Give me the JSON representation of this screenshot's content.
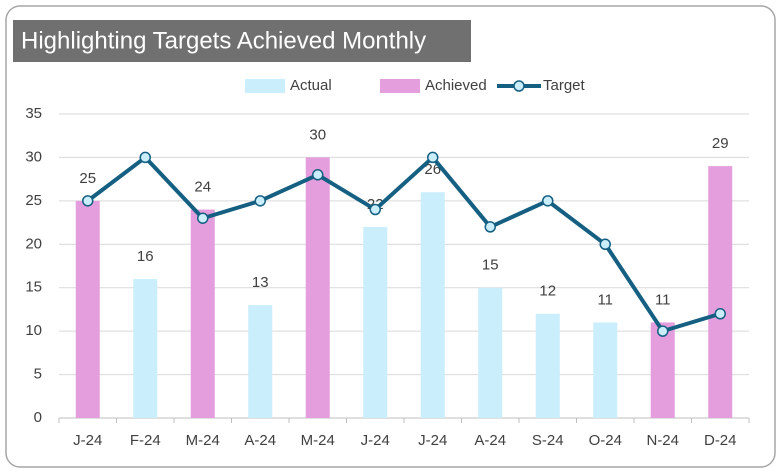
{
  "chart_data": {
    "type": "bar",
    "title": "Highlighting Targets Achieved Monthly",
    "categories": [
      "J-24",
      "F-24",
      "M-24",
      "A-24",
      "M-24",
      "J-24",
      "J-24",
      "A-24",
      "S-24",
      "O-24",
      "N-24",
      "D-24"
    ],
    "series": [
      {
        "name": "Actual",
        "type": "bar",
        "color": "#caeefb",
        "values": [
          null,
          16,
          null,
          13,
          null,
          22,
          26,
          15,
          12,
          11,
          null,
          null
        ]
      },
      {
        "name": "Achieved",
        "type": "bar",
        "color": "#e49edd",
        "values": [
          25,
          null,
          24,
          null,
          30,
          null,
          null,
          null,
          null,
          null,
          11,
          29
        ]
      },
      {
        "name": "Target",
        "type": "line",
        "color": "#156082",
        "marker_fill": "#caeefb",
        "values": [
          25,
          30,
          23,
          25,
          28,
          24,
          30,
          22,
          25,
          20,
          10,
          12
        ]
      }
    ],
    "ylim": [
      0,
      35
    ],
    "yticks": [
      0,
      5,
      10,
      15,
      20,
      25,
      30,
      35
    ],
    "grid": true,
    "legend": "top"
  }
}
